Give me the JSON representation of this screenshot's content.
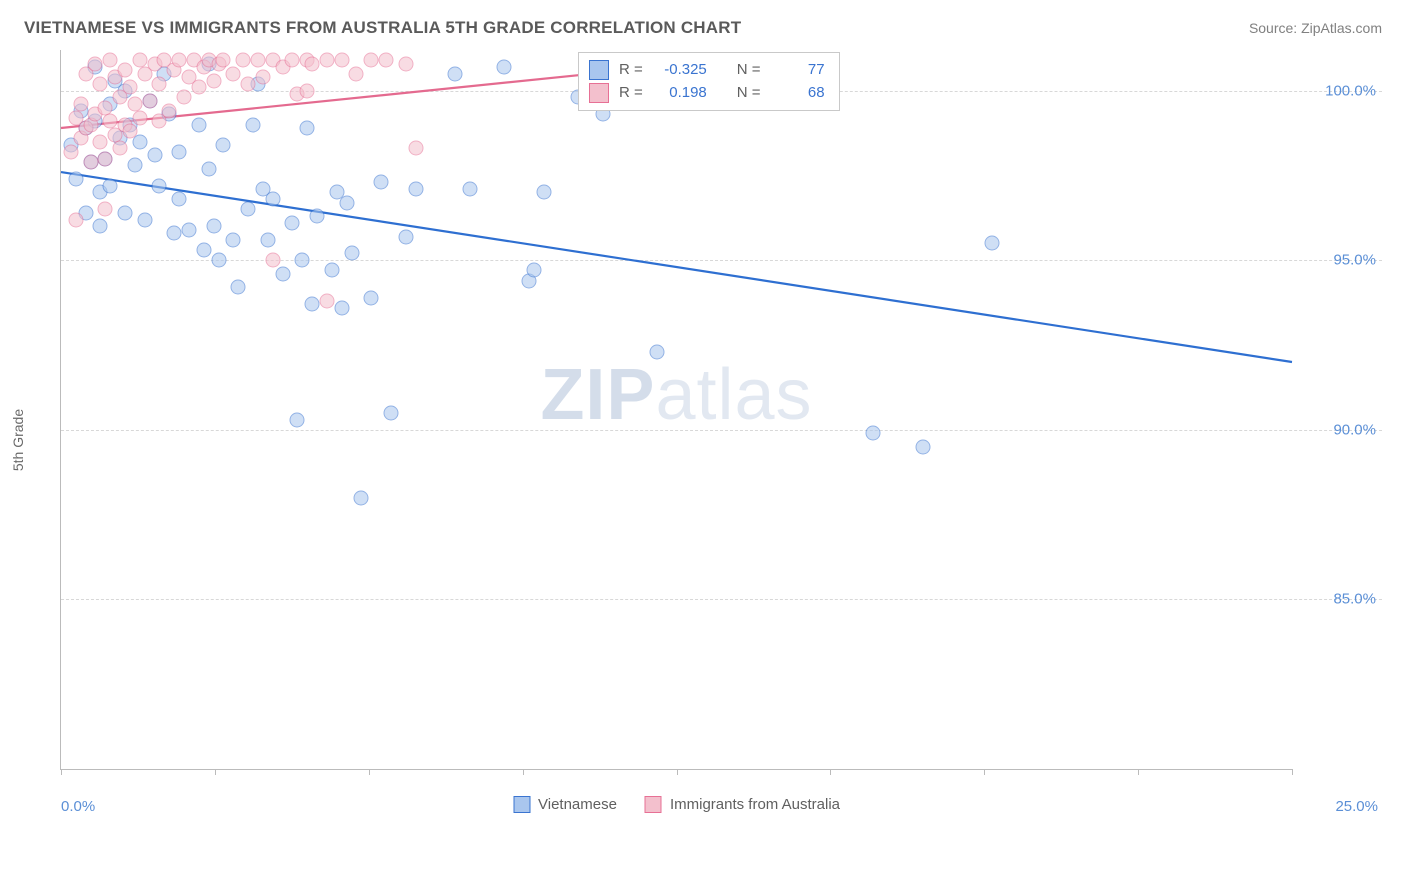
{
  "title": "VIETNAMESE VS IMMIGRANTS FROM AUSTRALIA 5TH GRADE CORRELATION CHART",
  "source_label": "Source:",
  "source_name": "ZipAtlas.com",
  "ylabel": "5th Grade",
  "watermark_bold": "ZIP",
  "watermark_rest": "atlas",
  "chart": {
    "type": "scatter",
    "background_color": "#ffffff",
    "grid_color": "#d8d8d8",
    "axis_color": "#bbbbbb",
    "tick_text_color": "#5b8fd6",
    "label_text_color": "#6a6a6a",
    "title_text_color": "#5a5a5a",
    "title_fontsize": 17,
    "label_fontsize": 14,
    "tick_fontsize": 15,
    "xlim": [
      0,
      25
    ],
    "ylim": [
      80,
      101.2
    ],
    "xticks": [
      0,
      3.125,
      6.25,
      9.375,
      12.5,
      15.625,
      18.75,
      21.875,
      25
    ],
    "yticks": [
      85,
      90,
      95,
      100
    ],
    "ytick_labels": [
      "85.0%",
      "90.0%",
      "95.0%",
      "100.0%"
    ],
    "xlabel_min": "0.0%",
    "xlabel_max": "25.0%",
    "marker_radius": 7.5,
    "marker_opacity": 0.55,
    "marker_border_opacity": 0.9,
    "line_width": 2.2,
    "series": [
      {
        "name": "Vietnamese",
        "fill": "#a9c6ee",
        "stroke": "#3a74d0",
        "line_color": "#2e6fd1",
        "r_value": "-0.325",
        "n_value": "77",
        "trend": {
          "x1": 0,
          "y1": 97.6,
          "x2": 25,
          "y2": 92.0
        },
        "points": [
          [
            0.2,
            98.4
          ],
          [
            0.3,
            97.4
          ],
          [
            0.4,
            99.4
          ],
          [
            0.5,
            96.4
          ],
          [
            0.5,
            98.9
          ],
          [
            0.6,
            97.9
          ],
          [
            0.7,
            100.7
          ],
          [
            0.7,
            99.1
          ],
          [
            0.8,
            97.0
          ],
          [
            0.8,
            96.0
          ],
          [
            0.9,
            98.0
          ],
          [
            1.0,
            99.6
          ],
          [
            1.0,
            97.2
          ],
          [
            1.1,
            100.3
          ],
          [
            1.2,
            98.6
          ],
          [
            1.3,
            96.4
          ],
          [
            1.3,
            100.0
          ],
          [
            1.4,
            99.0
          ],
          [
            1.5,
            97.8
          ],
          [
            1.6,
            98.5
          ],
          [
            1.7,
            96.2
          ],
          [
            1.8,
            99.7
          ],
          [
            1.9,
            98.1
          ],
          [
            2.0,
            97.2
          ],
          [
            2.1,
            100.5
          ],
          [
            2.2,
            99.3
          ],
          [
            2.3,
            95.8
          ],
          [
            2.4,
            98.2
          ],
          [
            2.4,
            96.8
          ],
          [
            2.6,
            95.9
          ],
          [
            2.8,
            99.0
          ],
          [
            3.0,
            100.8
          ],
          [
            3.0,
            97.7
          ],
          [
            3.1,
            96.0
          ],
          [
            3.3,
            98.4
          ],
          [
            3.2,
            95.0
          ],
          [
            3.5,
            95.6
          ],
          [
            3.8,
            96.5
          ],
          [
            3.9,
            99.0
          ],
          [
            4.0,
            100.2
          ],
          [
            4.1,
            97.1
          ],
          [
            4.3,
            96.8
          ],
          [
            4.5,
            94.6
          ],
          [
            4.7,
            96.1
          ],
          [
            4.9,
            95.0
          ],
          [
            4.8,
            90.3
          ],
          [
            5.0,
            98.9
          ],
          [
            5.1,
            93.7
          ],
          [
            5.2,
            96.3
          ],
          [
            5.5,
            94.7
          ],
          [
            5.6,
            97.0
          ],
          [
            5.7,
            93.6
          ],
          [
            5.8,
            96.7
          ],
          [
            5.9,
            95.2
          ],
          [
            6.1,
            88.0
          ],
          [
            6.3,
            93.9
          ],
          [
            6.5,
            97.3
          ],
          [
            6.7,
            90.5
          ],
          [
            7.0,
            95.7
          ],
          [
            7.2,
            97.1
          ],
          [
            8.0,
            100.5
          ],
          [
            8.3,
            97.1
          ],
          [
            9.0,
            100.7
          ],
          [
            9.5,
            94.4
          ],
          [
            9.6,
            94.7
          ],
          [
            9.8,
            97.0
          ],
          [
            10.5,
            99.8
          ],
          [
            11.0,
            99.3
          ],
          [
            12.1,
            92.3
          ],
          [
            13.8,
            100.9
          ],
          [
            14.8,
            100.8
          ],
          [
            16.5,
            89.9
          ],
          [
            17.5,
            89.5
          ],
          [
            18.9,
            95.5
          ],
          [
            2.9,
            95.3
          ],
          [
            3.6,
            94.2
          ],
          [
            4.2,
            95.6
          ]
        ]
      },
      {
        "name": "Immigrants from Australia",
        "fill": "#f3c0cd",
        "stroke": "#e77095",
        "line_color": "#e46a8f",
        "r_value": "0.198",
        "n_value": "68",
        "trend": {
          "x1": 0,
          "y1": 98.9,
          "x2": 13.5,
          "y2": 100.9
        },
        "points": [
          [
            0.2,
            98.2
          ],
          [
            0.3,
            99.2
          ],
          [
            0.4,
            98.6
          ],
          [
            0.4,
            99.6
          ],
          [
            0.5,
            100.5
          ],
          [
            0.5,
            98.9
          ],
          [
            0.6,
            99.0
          ],
          [
            0.6,
            97.9
          ],
          [
            0.7,
            100.8
          ],
          [
            0.7,
            99.3
          ],
          [
            0.8,
            98.5
          ],
          [
            0.8,
            100.2
          ],
          [
            0.9,
            99.5
          ],
          [
            0.9,
            98.0
          ],
          [
            1.0,
            100.9
          ],
          [
            1.0,
            99.1
          ],
          [
            1.1,
            98.7
          ],
          [
            1.1,
            100.4
          ],
          [
            1.2,
            99.8
          ],
          [
            1.2,
            98.3
          ],
          [
            1.3,
            100.6
          ],
          [
            1.3,
            99.0
          ],
          [
            1.4,
            100.1
          ],
          [
            1.4,
            98.8
          ],
          [
            1.5,
            99.6
          ],
          [
            1.6,
            100.9
          ],
          [
            1.6,
            99.2
          ],
          [
            1.7,
            100.5
          ],
          [
            1.8,
            99.7
          ],
          [
            1.9,
            100.8
          ],
          [
            2.0,
            99.1
          ],
          [
            2.0,
            100.2
          ],
          [
            2.1,
            100.9
          ],
          [
            2.2,
            99.4
          ],
          [
            2.3,
            100.6
          ],
          [
            2.4,
            100.9
          ],
          [
            2.5,
            99.8
          ],
          [
            2.6,
            100.4
          ],
          [
            2.7,
            100.9
          ],
          [
            2.8,
            100.1
          ],
          [
            2.9,
            100.7
          ],
          [
            3.0,
            100.9
          ],
          [
            3.1,
            100.3
          ],
          [
            3.2,
            100.8
          ],
          [
            3.3,
            100.9
          ],
          [
            3.5,
            100.5
          ],
          [
            3.7,
            100.9
          ],
          [
            3.8,
            100.2
          ],
          [
            4.0,
            100.9
          ],
          [
            4.1,
            100.4
          ],
          [
            4.3,
            100.9
          ],
          [
            4.5,
            100.7
          ],
          [
            4.7,
            100.9
          ],
          [
            4.8,
            99.9
          ],
          [
            5.0,
            100.9
          ],
          [
            5.1,
            100.8
          ],
          [
            5.4,
            100.9
          ],
          [
            5.4,
            93.8
          ],
          [
            5.7,
            100.9
          ],
          [
            4.3,
            95.0
          ],
          [
            6.0,
            100.5
          ],
          [
            6.3,
            100.9
          ],
          [
            6.6,
            100.9
          ],
          [
            7.0,
            100.8
          ],
          [
            7.2,
            98.3
          ],
          [
            5.0,
            100.0
          ],
          [
            0.3,
            96.2
          ],
          [
            0.9,
            96.5
          ]
        ]
      }
    ],
    "legend": [
      {
        "label": "Vietnamese",
        "fill": "#a9c6ee",
        "stroke": "#3a74d0"
      },
      {
        "label": "Immigrants from Australia",
        "fill": "#f3c0cd",
        "stroke": "#e77095"
      }
    ],
    "stats_box": {
      "border_color": "#c9c9c9",
      "r_label": "R =",
      "n_label": "N ="
    }
  }
}
